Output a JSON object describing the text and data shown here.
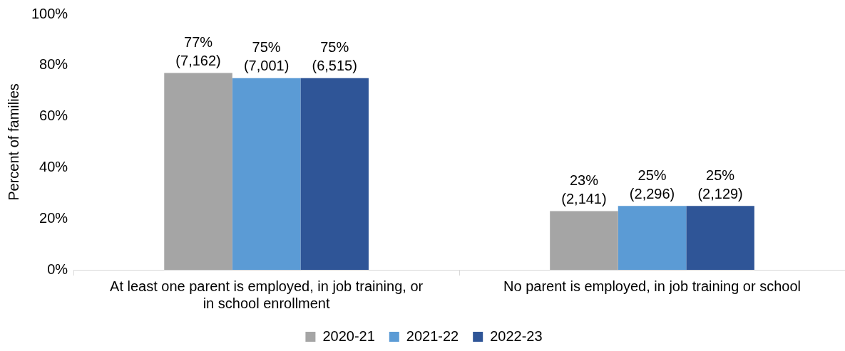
{
  "chart_data": {
    "type": "bar",
    "ylabel": "Percent of families",
    "categories": [
      "At least one parent is employed, in job training, or in school enrollment",
      "No parent is employed, in job training or school"
    ],
    "series": [
      {
        "name": "2020-21",
        "color": "#a5a5a5",
        "values": [
          77,
          23
        ],
        "value_labels": [
          "77% (7,162)",
          "23% (2,141)"
        ]
      },
      {
        "name": "2021-22",
        "color": "#5b9bd5",
        "values": [
          75,
          25
        ],
        "value_labels": [
          "75% (7,001)",
          "25% (2,296)"
        ]
      },
      {
        "name": "2022-23",
        "color": "#2f5597",
        "values": [
          75,
          25
        ],
        "value_labels": [
          "75% (6,515)",
          "25% (2,129)"
        ]
      }
    ],
    "ylim": [
      0,
      100
    ],
    "yticks": [
      {
        "value": 0,
        "label": "0%"
      },
      {
        "value": 20,
        "label": "20%"
      },
      {
        "value": 40,
        "label": "40%"
      },
      {
        "value": 60,
        "label": "60%"
      },
      {
        "value": 80,
        "label": "80%"
      },
      {
        "value": 100,
        "label": "100%"
      }
    ],
    "grid": false,
    "legend": "bottom"
  }
}
